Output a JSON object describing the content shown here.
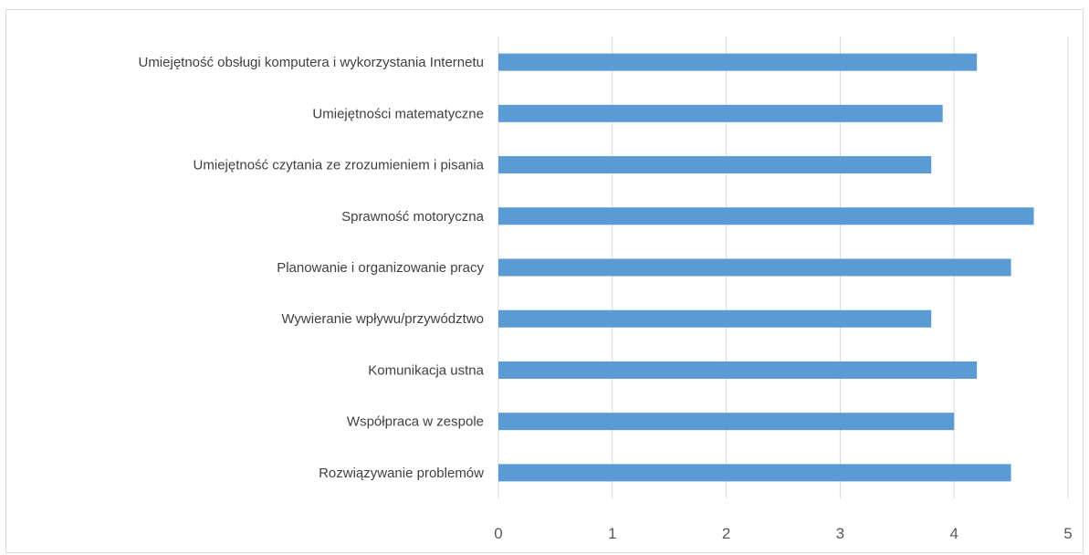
{
  "chart_data": {
    "type": "bar",
    "orientation": "horizontal",
    "title": "",
    "xlabel": "",
    "ylabel": "",
    "categories": [
      "Umiejętność obsługi komputera i wykorzystania Internetu",
      "Umiejętności matematyczne",
      "Umiejętność czytania ze zrozumieniem i pisania",
      "Sprawność motoryczna",
      "Planowanie i organizowanie pracy",
      "Wywieranie wpływu/przywództwo",
      "Komunikacja ustna",
      "Współpraca w zespole",
      "Rozwiązywanie problemów"
    ],
    "values": [
      4.2,
      3.9,
      3.8,
      4.7,
      4.5,
      3.8,
      4.2,
      4.0,
      4.5
    ],
    "xlim": [
      0,
      5
    ],
    "xticks": [
      "0",
      "1",
      "2",
      "3",
      "4",
      "5"
    ],
    "grid": true,
    "legend": "none",
    "bar_color": "#5b9bd5"
  }
}
